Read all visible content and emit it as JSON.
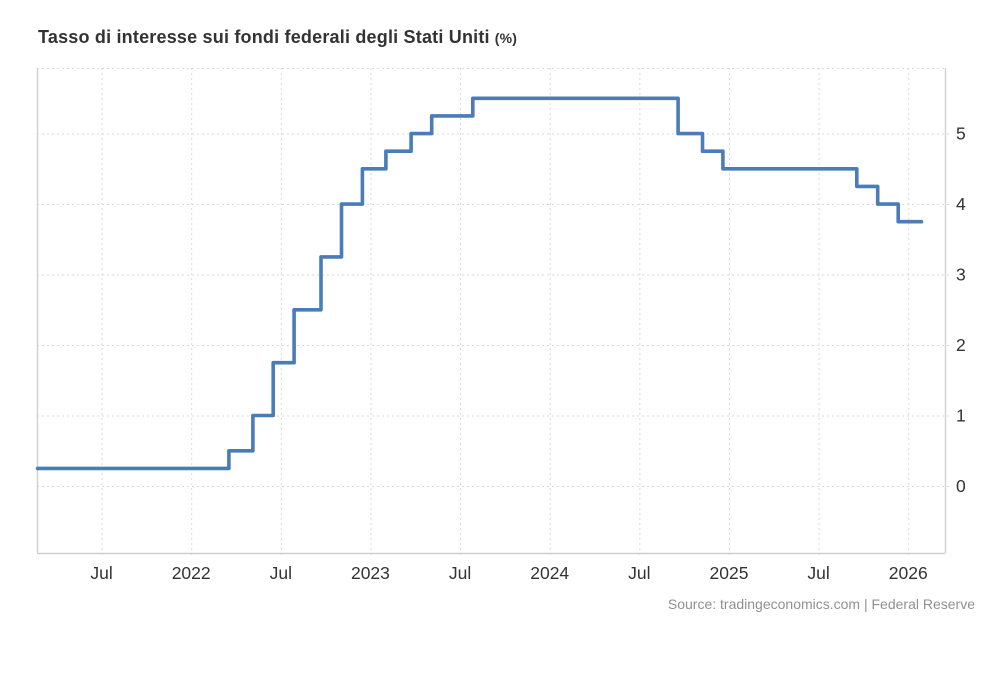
{
  "header": {
    "title": "Tasso di interesse sui fondi federali degli Stati Uniti",
    "unit": "(%)"
  },
  "footer": {
    "source": "Source: tradingeconomics.com | Federal Reserve"
  },
  "colors": {
    "line": "#4a7cb8",
    "grid": "#d9d9d9",
    "axis": "#d0d0d0",
    "tick_label": "#333333",
    "title_text": "#333333",
    "source_text": "#909090",
    "background": "#ffffff"
  },
  "chart_data": {
    "type": "line",
    "style": "step-after",
    "title": "Tasso di interesse sui fondi federali degli Stati Uniti (%)",
    "xlabel": "",
    "ylabel": "",
    "legend": "none",
    "grid": "dotted",
    "x_range": [
      2021.14,
      2026.205
    ],
    "y_range": [
      -0.95,
      5.93
    ],
    "y_ticks": [
      0,
      1,
      2,
      3,
      4,
      5
    ],
    "x_ticks": [
      {
        "t": 2021.5,
        "label": "Jul"
      },
      {
        "t": 2022.0,
        "label": "2022"
      },
      {
        "t": 2022.5,
        "label": "Jul"
      },
      {
        "t": 2023.0,
        "label": "2023"
      },
      {
        "t": 2023.5,
        "label": "Jul"
      },
      {
        "t": 2024.0,
        "label": "2024"
      },
      {
        "t": 2024.5,
        "label": "Jul"
      },
      {
        "t": 2025.0,
        "label": "2025"
      },
      {
        "t": 2025.5,
        "label": "Jul"
      },
      {
        "t": 2026.0,
        "label": "2026"
      }
    ],
    "points": [
      {
        "date": "2021-02-23",
        "value": 0.25
      },
      {
        "date": "2022-03-17",
        "value": 0.5
      },
      {
        "date": "2022-05-05",
        "value": 1.0
      },
      {
        "date": "2022-06-16",
        "value": 1.75
      },
      {
        "date": "2022-07-28",
        "value": 2.5
      },
      {
        "date": "2022-09-22",
        "value": 3.25
      },
      {
        "date": "2022-11-03",
        "value": 4.0
      },
      {
        "date": "2022-12-15",
        "value": 4.5
      },
      {
        "date": "2023-02-02",
        "value": 4.75
      },
      {
        "date": "2023-03-23",
        "value": 5.0
      },
      {
        "date": "2023-05-04",
        "value": 5.25
      },
      {
        "date": "2023-07-27",
        "value": 5.5
      },
      {
        "date": "2024-09-19",
        "value": 5.0
      },
      {
        "date": "2024-11-08",
        "value": 4.75
      },
      {
        "date": "2024-12-19",
        "value": 4.5
      },
      {
        "date": "2025-09-18",
        "value": 4.25
      },
      {
        "date": "2025-10-30",
        "value": 4.0
      },
      {
        "date": "2025-12-11",
        "value": 3.75
      },
      {
        "date": "2026-01-28",
        "value": 3.75
      }
    ]
  }
}
